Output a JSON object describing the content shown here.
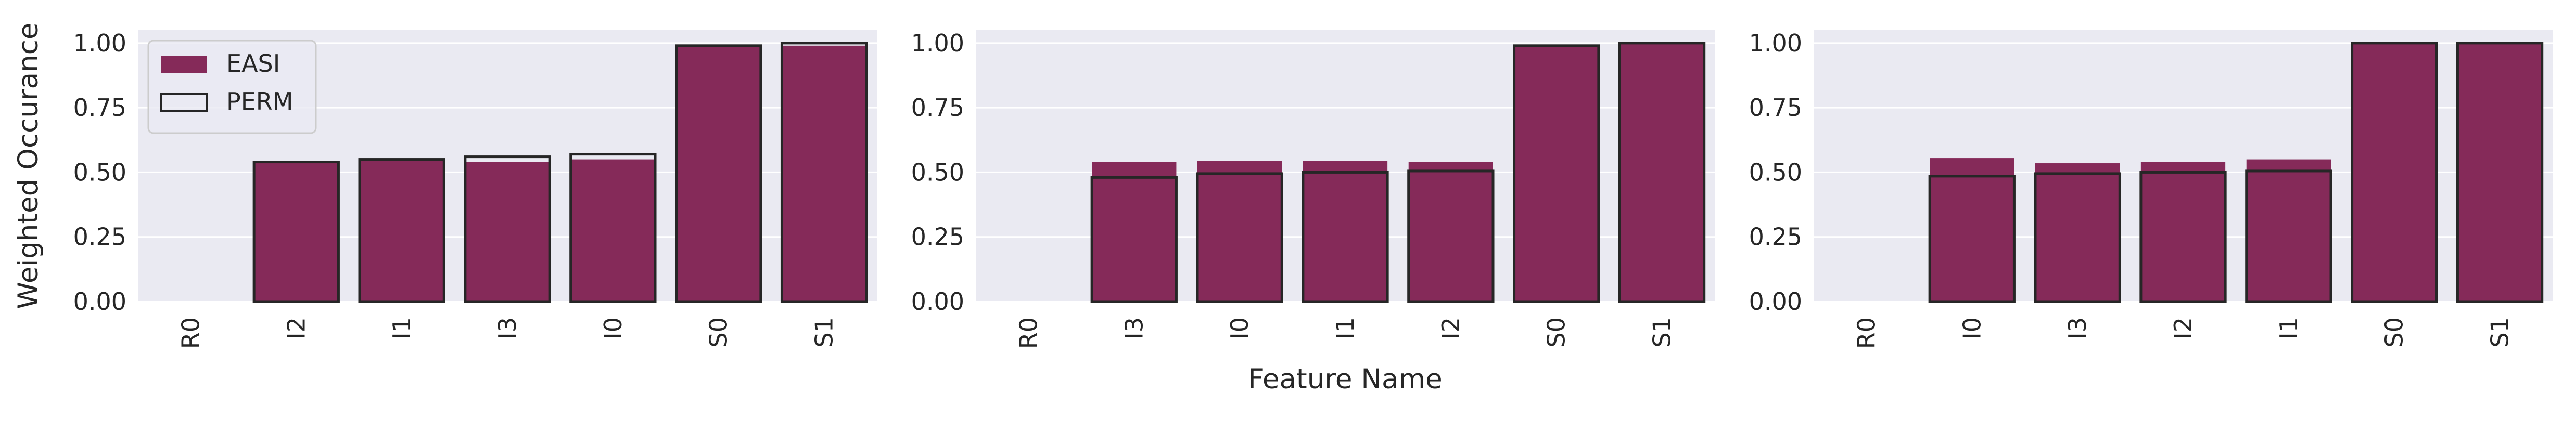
{
  "colors": {
    "background": "#ffffff",
    "panel": "#eaeaf2",
    "grid": "#ffffff",
    "easi": "#852a59",
    "perm_edge": "#262626"
  },
  "chart_data": [
    {
      "type": "bar",
      "ylabel": "Weighted Occurance",
      "xlabel": "",
      "ylim": [
        0,
        1.05
      ],
      "yticks": [
        "0.00",
        "0.25",
        "0.50",
        "0.75",
        "1.00"
      ],
      "categories": [
        "R0",
        "I2",
        "I1",
        "I3",
        "I0",
        "S0",
        "S1"
      ],
      "series": [
        {
          "name": "EASI",
          "style": "filled",
          "values": [
            0.0,
            0.54,
            0.55,
            0.54,
            0.55,
            0.99,
            0.99
          ]
        },
        {
          "name": "PERM",
          "style": "outline",
          "values": [
            0.0,
            0.54,
            0.55,
            0.56,
            0.57,
            0.99,
            1.0
          ]
        }
      ],
      "legend": {
        "position": "top-left",
        "entries": [
          "EASI",
          "PERM"
        ]
      },
      "grid": true
    },
    {
      "type": "bar",
      "ylabel": "",
      "xlabel": "Feature Name",
      "ylim": [
        0,
        1.05
      ],
      "yticks": [
        "0.00",
        "0.25",
        "0.50",
        "0.75",
        "1.00"
      ],
      "categories": [
        "R0",
        "I3",
        "I0",
        "I1",
        "I2",
        "S0",
        "S1"
      ],
      "series": [
        {
          "name": "EASI",
          "style": "filled",
          "values": [
            0.0,
            0.54,
            0.545,
            0.545,
            0.54,
            0.99,
            1.0
          ]
        },
        {
          "name": "PERM",
          "style": "outline",
          "values": [
            0.0,
            0.48,
            0.495,
            0.5,
            0.505,
            0.99,
            1.0
          ]
        }
      ],
      "grid": true
    },
    {
      "type": "bar",
      "ylabel": "",
      "xlabel": "",
      "ylim": [
        0,
        1.05
      ],
      "yticks": [
        "0.00",
        "0.25",
        "0.50",
        "0.75",
        "1.00"
      ],
      "categories": [
        "R0",
        "I0",
        "I3",
        "I2",
        "I1",
        "S0",
        "S1"
      ],
      "series": [
        {
          "name": "EASI",
          "style": "filled",
          "values": [
            0.0,
            0.555,
            0.535,
            0.54,
            0.55,
            1.0,
            1.0
          ]
        },
        {
          "name": "PERM",
          "style": "outline",
          "values": [
            0.0,
            0.485,
            0.495,
            0.5,
            0.505,
            1.0,
            1.0
          ]
        }
      ],
      "grid": true
    }
  ]
}
